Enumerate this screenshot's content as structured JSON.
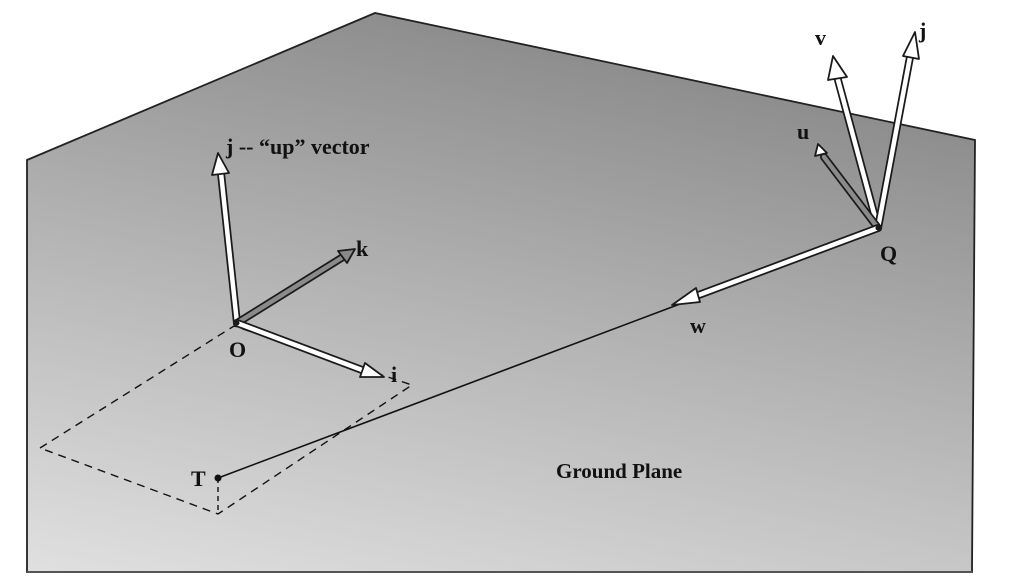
{
  "diagram": {
    "labels": {
      "up_vector": "j -- “up” vector",
      "k": "k",
      "O": "O",
      "i": "i",
      "T": "T",
      "w": "w",
      "Q": "Q",
      "u": "u",
      "v": "v",
      "j_camera": "j",
      "ground_plane": "Ground Plane"
    },
    "colors": {
      "plane_light": "#e0e0e0",
      "plane_dark": "#8e8e8e",
      "arrow_fill": "#ffffff",
      "arrow_stroke": "#1a1a1a",
      "line": "#111111"
    }
  }
}
